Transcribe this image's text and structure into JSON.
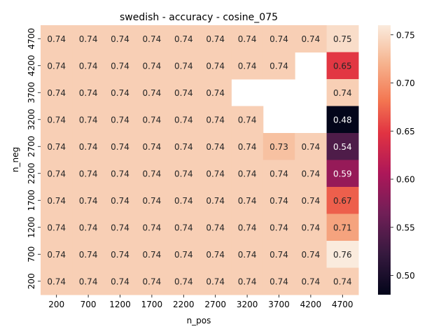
{
  "chart_data": {
    "type": "heatmap",
    "title": "swedish - accuracy - cosine_075",
    "xlabel": "n_pos",
    "ylabel": "n_neg",
    "x": [
      "200",
      "700",
      "1200",
      "1700",
      "2200",
      "2700",
      "3200",
      "3700",
      "4200",
      "4700"
    ],
    "y": [
      "4700",
      "4200",
      "3700",
      "3200",
      "2700",
      "2200",
      "1700",
      "1200",
      "700",
      "200"
    ],
    "values": [
      [
        0.74,
        0.74,
        0.74,
        0.74,
        0.74,
        0.74,
        0.74,
        0.74,
        0.74,
        0.75
      ],
      [
        0.74,
        0.74,
        0.74,
        0.74,
        0.74,
        0.74,
        0.74,
        0.74,
        null,
        0.65
      ],
      [
        0.74,
        0.74,
        0.74,
        0.74,
        0.74,
        0.74,
        null,
        null,
        null,
        0.74
      ],
      [
        0.74,
        0.74,
        0.74,
        0.74,
        0.74,
        0.74,
        0.74,
        null,
        null,
        0.48
      ],
      [
        0.74,
        0.74,
        0.74,
        0.74,
        0.74,
        0.74,
        0.74,
        0.73,
        0.74,
        0.54
      ],
      [
        0.74,
        0.74,
        0.74,
        0.74,
        0.74,
        0.74,
        0.74,
        0.74,
        0.74,
        0.59
      ],
      [
        0.74,
        0.74,
        0.74,
        0.74,
        0.74,
        0.74,
        0.74,
        0.74,
        0.74,
        0.67
      ],
      [
        0.74,
        0.74,
        0.74,
        0.74,
        0.74,
        0.74,
        0.74,
        0.74,
        0.74,
        0.71
      ],
      [
        0.74,
        0.74,
        0.74,
        0.74,
        0.74,
        0.74,
        0.74,
        0.74,
        0.74,
        0.76
      ],
      [
        0.74,
        0.74,
        0.74,
        0.74,
        0.74,
        0.74,
        0.74,
        0.74,
        0.74,
        0.74
      ]
    ],
    "colorbar": {
      "ticks": [
        "0.50",
        "0.55",
        "0.60",
        "0.65",
        "0.70",
        "0.75"
      ],
      "range": [
        0.48,
        0.76
      ]
    },
    "colormap": "rocket",
    "grid": false
  }
}
